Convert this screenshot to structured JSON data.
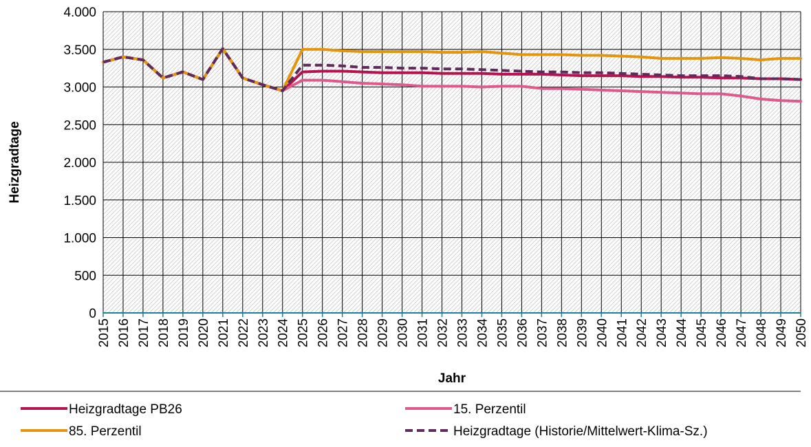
{
  "chart_data": {
    "type": "line",
    "xlabel": "Jahr",
    "ylabel": "Heizgradtage",
    "ylim": [
      0,
      4000
    ],
    "yticks": [
      0,
      500,
      1000,
      1500,
      2000,
      2500,
      3000,
      3500,
      4000
    ],
    "ytick_labels": [
      "0",
      "500",
      "1.000",
      "1.500",
      "2.000",
      "2.500",
      "3.000",
      "3.500",
      "4.000"
    ],
    "x": [
      2015,
      2016,
      2017,
      2018,
      2019,
      2020,
      2021,
      2022,
      2023,
      2024,
      2025,
      2026,
      2027,
      2028,
      2029,
      2030,
      2031,
      2032,
      2033,
      2034,
      2035,
      2036,
      2037,
      2038,
      2039,
      2040,
      2041,
      2042,
      2043,
      2044,
      2045,
      2046,
      2047,
      2048,
      2049,
      2050
    ],
    "x_labels": [
      "2015",
      "2016",
      "2017",
      "2018",
      "2019",
      "2020",
      "2021",
      "2022",
      "2023",
      "2024",
      "2025",
      "2026",
      "2027",
      "2028",
      "2029",
      "2030",
      "2031",
      "2032",
      "2033",
      "2034",
      "2035",
      "2036",
      "2037",
      "2038",
      "2039",
      "2040",
      "2041",
      "2042",
      "2043",
      "2044",
      "2045",
      "2046",
      "2047",
      "2048",
      "2049",
      "2050"
    ],
    "grid": true,
    "legend_position": "bottom",
    "series": [
      {
        "name": "Heizgradtage PB26",
        "color": "#b5124f",
        "dash": false,
        "values": [
          3330,
          3400,
          3360,
          3120,
          3200,
          3100,
          3510,
          3120,
          3030,
          2950,
          3200,
          3210,
          3210,
          3200,
          3190,
          3190,
          3190,
          3180,
          3180,
          3180,
          3170,
          3170,
          3170,
          3160,
          3150,
          3150,
          3150,
          3140,
          3140,
          3130,
          3130,
          3120,
          3120,
          3110,
          3110,
          3100
        ]
      },
      {
        "name": "15. Perzentil",
        "color": "#de5a8c",
        "dash": false,
        "values": [
          3330,
          3400,
          3360,
          3120,
          3200,
          3100,
          3510,
          3120,
          3030,
          2950,
          3090,
          3090,
          3070,
          3050,
          3040,
          3030,
          3010,
          3010,
          3010,
          3000,
          3010,
          3010,
          2980,
          2980,
          2970,
          2960,
          2950,
          2940,
          2930,
          2920,
          2910,
          2910,
          2880,
          2840,
          2820,
          2810
        ]
      },
      {
        "name": "85. Perzentil",
        "color": "#e3950d",
        "dash": false,
        "values": [
          3330,
          3400,
          3360,
          3120,
          3200,
          3100,
          3510,
          3120,
          3030,
          2950,
          3500,
          3500,
          3480,
          3470,
          3470,
          3470,
          3470,
          3460,
          3460,
          3470,
          3450,
          3430,
          3430,
          3430,
          3420,
          3420,
          3410,
          3400,
          3380,
          3380,
          3380,
          3390,
          3380,
          3360,
          3380,
          3380
        ]
      },
      {
        "name": "Heizgradtage (Historie/Mittelwert-Klima-Sz.)",
        "color": "#5f2a5c",
        "dash": true,
        "values": [
          3330,
          3400,
          3360,
          3120,
          3200,
          3100,
          3510,
          3120,
          3030,
          2950,
          3290,
          3290,
          3280,
          3260,
          3260,
          3250,
          3250,
          3240,
          3240,
          3230,
          3220,
          3210,
          3200,
          3200,
          3190,
          3190,
          3180,
          3170,
          3160,
          3150,
          3150,
          3150,
          3140,
          3110,
          3110,
          3100
        ]
      }
    ]
  }
}
